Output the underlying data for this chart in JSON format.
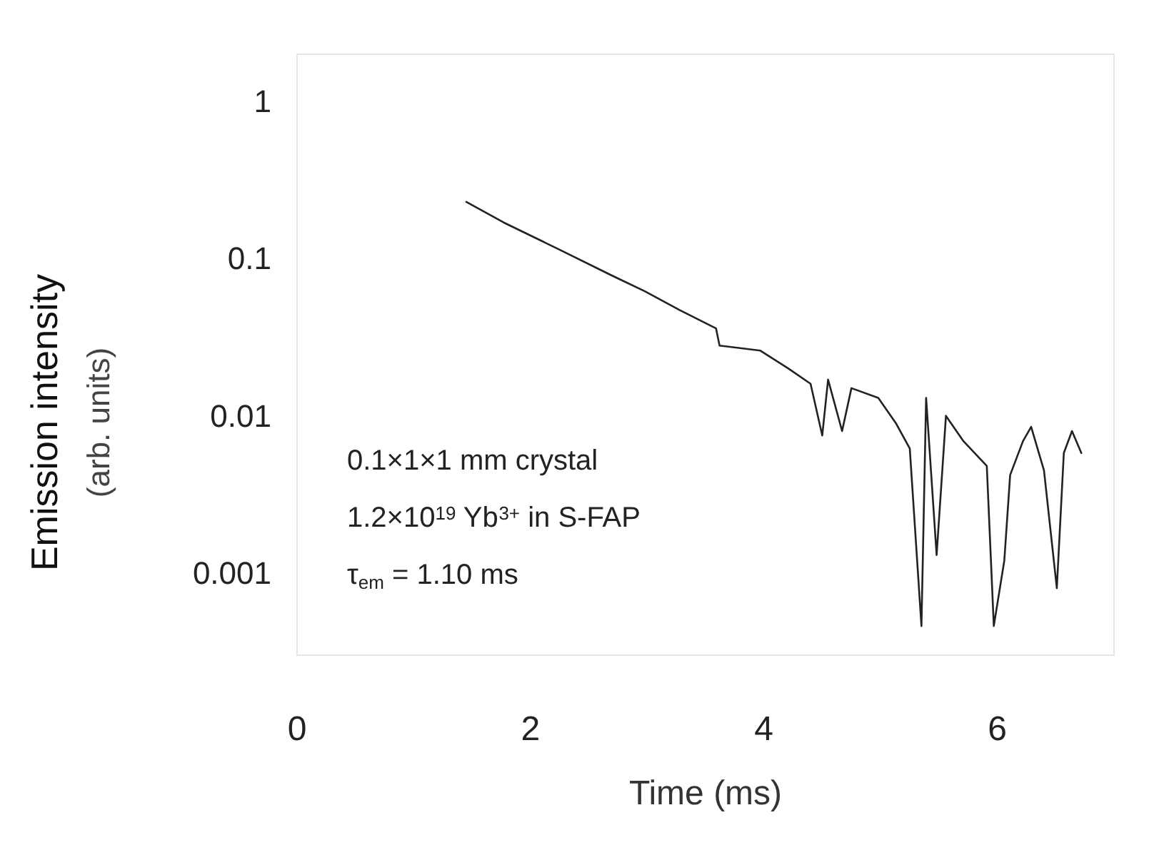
{
  "chart_data": {
    "type": "line",
    "xlabel": "Time (ms)",
    "ylabel": "Emission intensity\n(arb. units)",
    "x": [
      1.45,
      1.77,
      2.24,
      2.7,
      2.98,
      3.28,
      3.59,
      3.62,
      3.97,
      4.21,
      4.4,
      4.5,
      4.55,
      4.67,
      4.75,
      4.98,
      5.13,
      5.25,
      5.35,
      5.39,
      5.48,
      5.56,
      5.71,
      5.91,
      5.97,
      6.06,
      6.11,
      6.22,
      6.29,
      6.4,
      6.51,
      6.57,
      6.64,
      6.72
    ],
    "series": [
      {
        "color": "#222222",
        "values": [
          0.23,
          0.17,
          0.115,
          0.078,
          0.062,
          0.047,
          0.036,
          0.028,
          0.026,
          0.02,
          0.016,
          0.0075,
          0.017,
          0.008,
          0.015,
          0.013,
          0.009,
          0.0062,
          0.00046,
          0.013,
          0.0013,
          0.01,
          0.0069,
          0.0048,
          0.00046,
          0.0012,
          0.0042,
          0.0069,
          0.0085,
          0.0045,
          0.0008,
          0.0058,
          0.008,
          0.0058
        ]
      }
    ],
    "xlim": [
      0,
      7
    ],
    "xticks": [
      0,
      2,
      4,
      6
    ],
    "ylim": [
      0.0003,
      2
    ],
    "yticks": [
      1,
      0.1,
      0.01,
      0.001
    ],
    "log": true,
    "grid": false,
    "marker": "none",
    "line_style": "solid",
    "annotations": [
      "0.1×1×1 mm crystal",
      "1.2×10$^{19}$ Yb$^{3+}$ in S-FAP",
      "τ$_{em}$ = 1.10 ms"
    ]
  }
}
